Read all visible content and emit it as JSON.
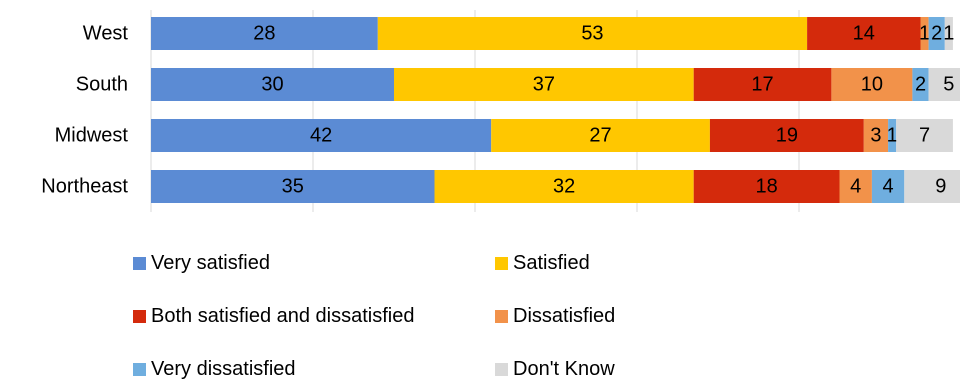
{
  "chart_data": {
    "type": "bar",
    "orientation": "horizontal",
    "stacked": true,
    "categories": [
      "West",
      "South",
      "Midwest",
      "Northeast"
    ],
    "series": [
      {
        "name": "Very satisfied",
        "color": "#5B8BD4",
        "values": [
          28,
          30,
          42,
          35
        ]
      },
      {
        "name": "Satisfied",
        "color": "#FFC700",
        "values": [
          53,
          37,
          27,
          32
        ]
      },
      {
        "name": "Both satisfied and dissatisfied",
        "color": "#D42A0C",
        "values": [
          14,
          17,
          19,
          18
        ]
      },
      {
        "name": "Dissatisfied",
        "color": "#F2924A",
        "values": [
          1,
          10,
          3,
          4
        ]
      },
      {
        "name": "Very dissatisfied",
        "color": "#6FAEDF",
        "values": [
          2,
          2,
          1,
          4
        ]
      },
      {
        "name": "Don't Know",
        "color": "#D9D9D9",
        "values": [
          1,
          5,
          7,
          9
        ]
      }
    ],
    "xlim": [
      0,
      100
    ],
    "grid": true,
    "legend_position": "bottom"
  }
}
